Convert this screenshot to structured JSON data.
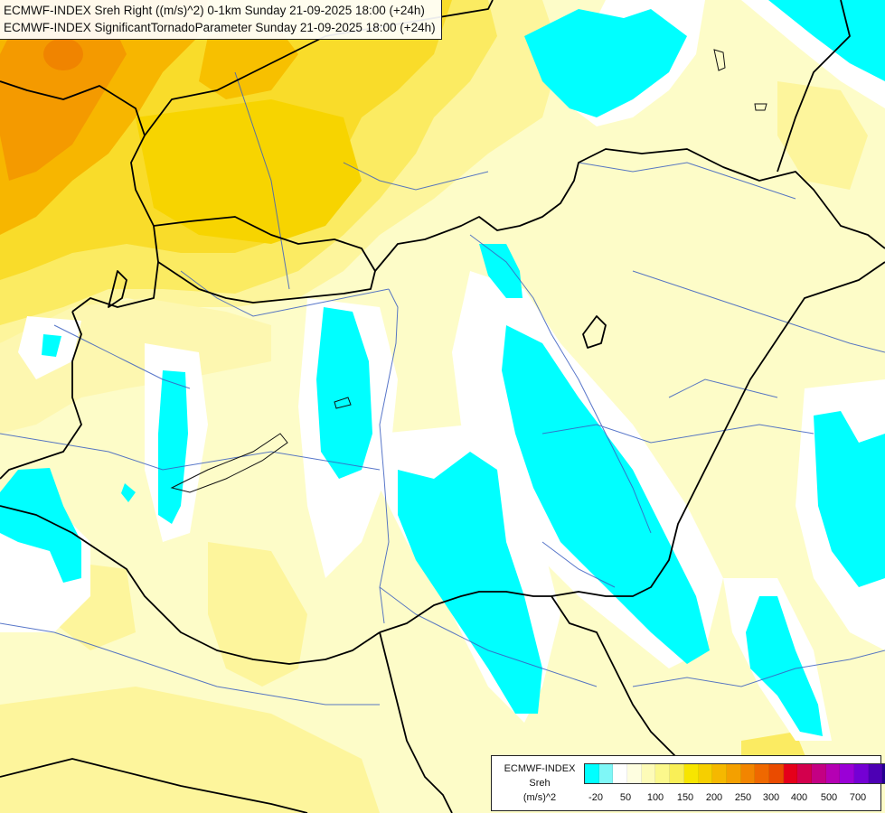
{
  "title": {
    "line1": "ECMWF-INDEX Sreh Right ((m/s)^2) 0-1km Sunday 21-09-2025 18:00 (+24h)",
    "line2": "ECMWF-INDEX SignificantTornadoParameter Sunday 21-09-2025 18:00 (+24h)"
  },
  "legend": {
    "line1": "ECMWF-INDEX",
    "line2": "Sreh",
    "line3": "(m/s)^2",
    "colors": [
      "#00ffff",
      "#7ff7f7",
      "#ffffff",
      "#fefee0",
      "#fdfbb8",
      "#fbf88c",
      "#f9ef57",
      "#f7e500",
      "#f6cf00",
      "#f5b800",
      "#f4a000",
      "#f28500",
      "#ef6800",
      "#ea4b00",
      "#e5001a",
      "#d3004d",
      "#c40083",
      "#b500b3",
      "#9a00d6",
      "#7400d4",
      "#4d00b4",
      "#23008f",
      "#000066"
    ],
    "tick_labels": [
      "-20",
      "50",
      "100",
      "150",
      "200",
      "250",
      "300",
      "400",
      "500",
      "700"
    ]
  },
  "palette": {
    "cyan": "#00ffff",
    "white": "#ffffff",
    "pale_yellow": "#fdfcc8",
    "yellow": "#fdf9a0",
    "golden": "#fbeb62",
    "gold": "#f9d800",
    "orange": "#f7b800",
    "dark_orange": "#f49400"
  }
}
